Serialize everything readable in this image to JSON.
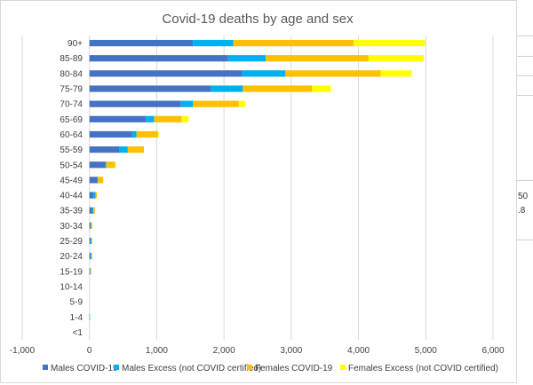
{
  "chart_data": {
    "type": "bar",
    "orientation": "horizontal",
    "stacked": true,
    "title": "Covid-19 deaths by age and sex",
    "categories": [
      "90+",
      "85-89",
      "80-84",
      "75-79",
      "70-74",
      "65-69",
      "60-64",
      "55-59",
      "50-54",
      "45-49",
      "40-44",
      "35-39",
      "30-34",
      "25-29",
      "20-24",
      "15-19",
      "10-14",
      "5-9",
      "1-4",
      "<1"
    ],
    "series": [
      {
        "name": "Males COVID-19",
        "color": "#4472c4",
        "values": [
          1540,
          2060,
          2270,
          1800,
          1360,
          840,
          630,
          440,
          240,
          120,
          60,
          40,
          20,
          10,
          10,
          5,
          0,
          0,
          0,
          0
        ]
      },
      {
        "name": "Males Excess (not COVID certified)",
        "color": "#00b0f0",
        "values": [
          600,
          560,
          640,
          480,
          180,
          120,
          70,
          130,
          10,
          5,
          30,
          20,
          5,
          20,
          20,
          10,
          0,
          0,
          5,
          0
        ]
      },
      {
        "name": "Females COVID-19",
        "color": "#ffc000",
        "values": [
          1790,
          1530,
          1420,
          1030,
          680,
          410,
          320,
          240,
          130,
          80,
          20,
          20,
          15,
          5,
          5,
          10,
          0,
          0,
          0,
          0
        ]
      },
      {
        "name": "Females Excess (not COVID certified)",
        "color": "#ffff00",
        "values": [
          1060,
          820,
          460,
          280,
          100,
          100,
          10,
          0,
          10,
          0,
          0,
          0,
          0,
          0,
          0,
          0,
          0,
          0,
          0,
          0
        ]
      }
    ],
    "xlim": [
      -1000,
      6000
    ],
    "xticks": [
      -1000,
      0,
      1000,
      2000,
      3000,
      4000,
      5000,
      6000
    ],
    "xtick_labels": [
      "-1,000",
      "0",
      "1,000",
      "2,000",
      "3,000",
      "4,000",
      "5,000",
      "6,000"
    ],
    "xlabel": "",
    "ylabel": "",
    "grid": "vertical",
    "legend": "bottom"
  },
  "sheet": {
    "cell_fragment_1": "50",
    "cell_fragment_2": ".8"
  }
}
